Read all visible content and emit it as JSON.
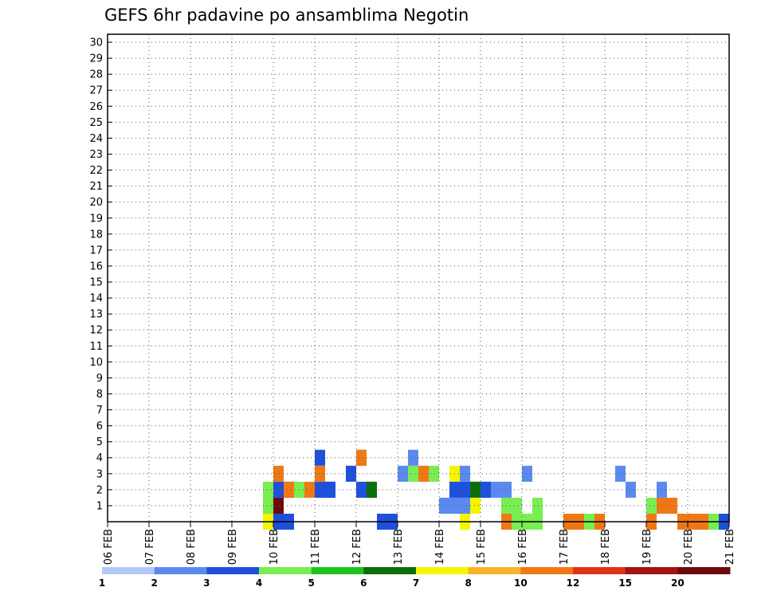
{
  "chart_data": {
    "type": "heatmap",
    "title": "GEFS 6hr padavine po ansamblima Negotin",
    "xlabel": "",
    "ylabel": "",
    "x_ticks": [
      "06 FEB",
      "07 FEB",
      "08 FEB",
      "09 FEB",
      "10 FEB",
      "11 FEB",
      "12 FEB",
      "13 FEB",
      "14 FEB",
      "15 FEB",
      "16 FEB",
      "17 FEB",
      "18 FEB",
      "19 FEB",
      "20 FEB",
      "21 FEB"
    ],
    "y_ticks": [
      "1",
      "2",
      "3",
      "4",
      "5",
      "6",
      "7",
      "8",
      "9",
      "10",
      "11",
      "12",
      "13",
      "14",
      "15",
      "16",
      "17",
      "18",
      "19",
      "20",
      "21",
      "22",
      "23",
      "24",
      "25",
      "26",
      "27",
      "28",
      "29",
      "30"
    ],
    "time_steps_per_day": 4,
    "num_steps": 60,
    "member_range": [
      0,
      30
    ],
    "grid": true,
    "colorbar": {
      "labels": [
        "1",
        "2",
        "3",
        "4",
        "5",
        "6",
        "7",
        "8",
        "10",
        "12",
        "15",
        "20"
      ],
      "colors": [
        "#b4c8f8",
        "#5a8af0",
        "#1e50dc",
        "#78ee50",
        "#1ec31e",
        "#0a6e0a",
        "#f5f500",
        "#f8b428",
        "#f07814",
        "#e13214",
        "#a01414",
        "#6e0a0a"
      ]
    },
    "cells": [
      [
        16,
        1,
        8
      ],
      [
        16,
        3,
        8
      ],
      [
        20,
        4,
        2
      ],
      [
        20,
        3,
        8
      ],
      [
        21,
        2,
        8
      ],
      [
        24,
        4,
        8
      ],
      [
        24,
        2,
        2
      ],
      [
        25,
        2,
        8
      ],
      [
        29,
        3,
        3
      ],
      [
        30,
        3,
        8
      ],
      [
        31,
        3,
        3
      ],
      [
        33,
        3,
        6
      ],
      [
        34,
        3,
        1
      ],
      [
        35,
        2,
        1
      ],
      [
        36,
        2,
        1
      ],
      [
        38,
        1,
        3
      ],
      [
        39,
        1,
        3
      ],
      [
        40,
        3,
        1
      ],
      [
        52,
        1,
        3
      ],
      [
        53,
        1,
        8
      ],
      [
        52,
        0,
        8
      ],
      [
        53,
        2,
        1
      ],
      [
        54,
        1,
        8
      ],
      [
        55,
        0,
        8
      ],
      [
        59,
        0,
        2
      ],
      [
        16,
        0,
        2
      ],
      [
        17,
        0,
        2
      ],
      [
        17,
        2,
        3
      ],
      [
        18,
        2,
        3
      ],
      [
        24,
        4,
        8
      ],
      [
        28,
        3,
        1
      ],
      [
        29,
        4,
        1
      ],
      [
        23,
        3,
        2
      ],
      [
        15,
        2,
        6
      ],
      [
        16,
        2,
        2
      ],
      [
        17,
        2,
        2
      ],
      [
        26,
        0,
        2
      ],
      [
        27,
        0,
        2
      ],
      [
        21,
        2,
        2
      ],
      [
        25,
        2,
        5
      ],
      [
        33,
        2,
        2
      ],
      [
        34,
        2,
        2
      ],
      [
        35,
        2,
        5
      ],
      [
        36,
        2,
        2
      ],
      [
        37,
        2,
        1
      ],
      [
        38,
        2,
        1
      ],
      [
        49,
        3,
        1
      ],
      [
        50,
        2,
        1
      ],
      [
        15,
        0,
        6
      ],
      [
        16,
        1,
        11
      ],
      [
        15,
        1,
        3
      ],
      [
        15,
        2,
        3
      ],
      [
        17,
        2,
        8
      ],
      [
        19,
        2,
        8
      ],
      [
        20,
        2,
        2
      ],
      [
        21,
        2,
        2
      ],
      [
        32,
        1,
        1
      ],
      [
        33,
        1,
        1
      ],
      [
        34,
        1,
        1
      ],
      [
        35,
        1,
        6
      ],
      [
        34,
        0,
        6
      ],
      [
        38,
        0,
        8
      ],
      [
        39,
        0,
        3
      ],
      [
        40,
        0,
        3
      ],
      [
        41,
        1,
        3
      ],
      [
        56,
        0,
        8
      ],
      [
        57,
        0,
        8
      ],
      [
        58,
        0,
        3
      ],
      [
        44,
        0,
        8
      ],
      [
        45,
        0,
        8
      ],
      [
        46,
        0,
        3
      ],
      [
        47,
        0,
        8
      ],
      [
        41,
        0,
        3
      ]
    ],
    "note": "cells are [time_step_index, member_row_index_from_bottom, color_index]"
  }
}
